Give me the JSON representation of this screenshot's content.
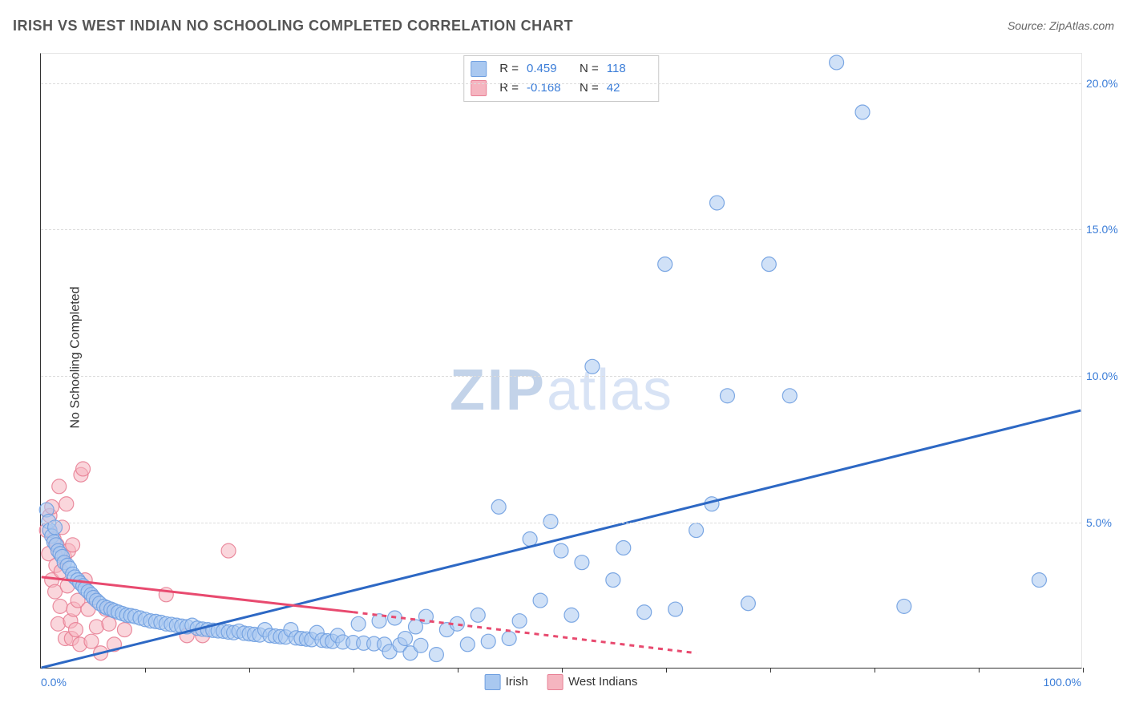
{
  "meta": {
    "title": "IRISH VS WEST INDIAN NO SCHOOLING COMPLETED CORRELATION CHART",
    "source_label": "Source: ZipAtlas.com",
    "y_axis_label": "No Schooling Completed",
    "watermark_zip": "ZIP",
    "watermark_atlas": "atlas"
  },
  "chart": {
    "type": "scatter_with_regression",
    "background_color": "#ffffff",
    "grid_color": "#dcdcdc",
    "axis_color": "#333333",
    "x_range": [
      0,
      100
    ],
    "y_range": [
      0,
      21
    ],
    "y_ticks": [
      5,
      10,
      15,
      20
    ],
    "y_tick_labels": [
      "5.0%",
      "10.0%",
      "15.0%",
      "20.0%"
    ],
    "x_tick_step": 10,
    "x_min_label": "0.0%",
    "x_max_label": "100.0%",
    "tick_label_color": "#3b7dd8",
    "tick_label_fontsize": 14,
    "marker_radius": 9,
    "marker_opacity": 0.55,
    "marker_stroke_opacity": 0.9,
    "line_width": 3
  },
  "legend_box": {
    "rows": [
      {
        "swatch": "irish",
        "r_label": "R =",
        "r_value": "0.459",
        "n_label": "N =",
        "n_value": "118"
      },
      {
        "swatch": "westindian",
        "r_label": "R =",
        "r_value": "-0.168",
        "n_label": "N =",
        "n_value": "42"
      }
    ]
  },
  "series": {
    "irish": {
      "label": "Irish",
      "fill_color": "#a9c8f0",
      "stroke_color": "#6f9fe0",
      "line_color": "#2d68c4",
      "line_solid": true,
      "regression": {
        "x1": 0,
        "y1": 0.0,
        "x2": 100,
        "y2": 8.8
      },
      "points": [
        [
          0.5,
          5.4
        ],
        [
          0.7,
          5.0
        ],
        [
          0.8,
          4.7
        ],
        [
          1.0,
          4.5
        ],
        [
          1.2,
          4.3
        ],
        [
          1.3,
          4.8
        ],
        [
          1.4,
          4.2
        ],
        [
          1.6,
          4.0
        ],
        [
          1.8,
          3.9
        ],
        [
          2.0,
          3.8
        ],
        [
          2.2,
          3.6
        ],
        [
          2.5,
          3.5
        ],
        [
          2.7,
          3.4
        ],
        [
          3.0,
          3.2
        ],
        [
          3.2,
          3.1
        ],
        [
          3.5,
          3.0
        ],
        [
          3.7,
          2.9
        ],
        [
          4.0,
          2.8
        ],
        [
          4.2,
          2.7
        ],
        [
          4.5,
          2.6
        ],
        [
          4.8,
          2.5
        ],
        [
          5.0,
          2.4
        ],
        [
          5.3,
          2.3
        ],
        [
          5.6,
          2.2
        ],
        [
          6.0,
          2.1
        ],
        [
          6.3,
          2.05
        ],
        [
          6.7,
          2.0
        ],
        [
          7.0,
          1.95
        ],
        [
          7.4,
          1.9
        ],
        [
          7.8,
          1.85
        ],
        [
          8.2,
          1.8
        ],
        [
          8.6,
          1.78
        ],
        [
          9.0,
          1.75
        ],
        [
          9.5,
          1.7
        ],
        [
          10.0,
          1.65
        ],
        [
          10.5,
          1.6
        ],
        [
          11.0,
          1.58
        ],
        [
          11.5,
          1.55
        ],
        [
          12.0,
          1.5
        ],
        [
          12.5,
          1.48
        ],
        [
          13.0,
          1.45
        ],
        [
          13.5,
          1.42
        ],
        [
          14.0,
          1.4
        ],
        [
          14.5,
          1.45
        ],
        [
          15.0,
          1.35
        ],
        [
          15.5,
          1.32
        ],
        [
          16.0,
          1.3
        ],
        [
          16.5,
          1.28
        ],
        [
          17.0,
          1.26
        ],
        [
          17.5,
          1.25
        ],
        [
          18.0,
          1.22
        ],
        [
          18.5,
          1.2
        ],
        [
          19.0,
          1.25
        ],
        [
          19.5,
          1.18
        ],
        [
          20.0,
          1.16
        ],
        [
          20.5,
          1.14
        ],
        [
          21.0,
          1.12
        ],
        [
          21.5,
          1.3
        ],
        [
          22.0,
          1.1
        ],
        [
          22.5,
          1.08
        ],
        [
          23.0,
          1.06
        ],
        [
          23.5,
          1.05
        ],
        [
          24.0,
          1.3
        ],
        [
          24.5,
          1.02
        ],
        [
          25.0,
          1.0
        ],
        [
          25.5,
          0.98
        ],
        [
          26.0,
          0.96
        ],
        [
          26.5,
          1.2
        ],
        [
          27.0,
          0.94
        ],
        [
          27.5,
          0.92
        ],
        [
          28.0,
          0.9
        ],
        [
          28.5,
          1.1
        ],
        [
          29.0,
          0.88
        ],
        [
          30.0,
          0.86
        ],
        [
          30.5,
          1.5
        ],
        [
          31.0,
          0.84
        ],
        [
          32.0,
          0.82
        ],
        [
          32.5,
          1.6
        ],
        [
          33.0,
          0.8
        ],
        [
          33.5,
          0.55
        ],
        [
          34.0,
          1.7
        ],
        [
          34.5,
          0.78
        ],
        [
          35.0,
          1.0
        ],
        [
          35.5,
          0.5
        ],
        [
          36.0,
          1.4
        ],
        [
          36.5,
          0.76
        ],
        [
          37.0,
          1.75
        ],
        [
          38.0,
          0.45
        ],
        [
          39.0,
          1.3
        ],
        [
          40.0,
          1.5
        ],
        [
          41.0,
          0.8
        ],
        [
          42.0,
          1.8
        ],
        [
          43.0,
          0.9
        ],
        [
          44.0,
          5.5
        ],
        [
          45.0,
          1.0
        ],
        [
          46.0,
          1.6
        ],
        [
          47.0,
          4.4
        ],
        [
          48.0,
          2.3
        ],
        [
          49.0,
          5.0
        ],
        [
          50.0,
          4.0
        ],
        [
          51.0,
          1.8
        ],
        [
          52.0,
          3.6
        ],
        [
          53.0,
          10.3
        ],
        [
          55.0,
          3.0
        ],
        [
          56.0,
          4.1
        ],
        [
          58.0,
          1.9
        ],
        [
          60.0,
          13.8
        ],
        [
          61.0,
          2.0
        ],
        [
          63.0,
          4.7
        ],
        [
          64.5,
          5.6
        ],
        [
          65.0,
          15.9
        ],
        [
          66.0,
          9.3
        ],
        [
          68.0,
          2.2
        ],
        [
          70.0,
          13.8
        ],
        [
          72.0,
          9.3
        ],
        [
          76.5,
          20.7
        ],
        [
          79.0,
          19.0
        ],
        [
          83.0,
          2.1
        ],
        [
          96.0,
          3.0
        ]
      ]
    },
    "westindian": {
      "label": "West Indians",
      "fill_color": "#f5b5c0",
      "stroke_color": "#e88095",
      "line_color": "#e84a6f",
      "line_solid": false,
      "regression_solid": {
        "x1": 0,
        "y1": 3.1,
        "x2": 30,
        "y2": 1.9
      },
      "regression_dashed": {
        "x1": 30,
        "y1": 1.9,
        "x2": 63,
        "y2": 0.5
      },
      "points": [
        [
          0.5,
          4.7
        ],
        [
          0.7,
          3.9
        ],
        [
          0.8,
          5.2
        ],
        [
          1.0,
          3.0
        ],
        [
          1.0,
          5.5
        ],
        [
          1.2,
          4.4
        ],
        [
          1.3,
          2.6
        ],
        [
          1.4,
          3.5
        ],
        [
          1.5,
          4.2
        ],
        [
          1.6,
          1.5
        ],
        [
          1.7,
          6.2
        ],
        [
          1.8,
          2.1
        ],
        [
          1.9,
          3.3
        ],
        [
          2.0,
          4.8
        ],
        [
          2.2,
          3.8
        ],
        [
          2.3,
          1.0
        ],
        [
          2.4,
          5.6
        ],
        [
          2.5,
          2.8
        ],
        [
          2.6,
          4.0
        ],
        [
          2.8,
          1.6
        ],
        [
          2.9,
          1.0
        ],
        [
          3.0,
          4.2
        ],
        [
          3.1,
          2.0
        ],
        [
          3.3,
          1.3
        ],
        [
          3.5,
          2.3
        ],
        [
          3.7,
          0.8
        ],
        [
          3.8,
          6.6
        ],
        [
          4.0,
          6.8
        ],
        [
          4.2,
          3.0
        ],
        [
          4.5,
          2.0
        ],
        [
          4.8,
          0.9
        ],
        [
          5.0,
          2.4
        ],
        [
          5.3,
          1.4
        ],
        [
          5.7,
          0.5
        ],
        [
          6.2,
          2.0
        ],
        [
          6.5,
          1.5
        ],
        [
          7.0,
          0.8
        ],
        [
          8.0,
          1.3
        ],
        [
          12.0,
          2.5
        ],
        [
          14.0,
          1.1
        ],
        [
          15.5,
          1.1
        ],
        [
          18.0,
          4.0
        ]
      ]
    }
  },
  "bottom_legend": [
    {
      "swatch": "irish",
      "label": "Irish"
    },
    {
      "swatch": "westindian",
      "label": "West Indians"
    }
  ]
}
